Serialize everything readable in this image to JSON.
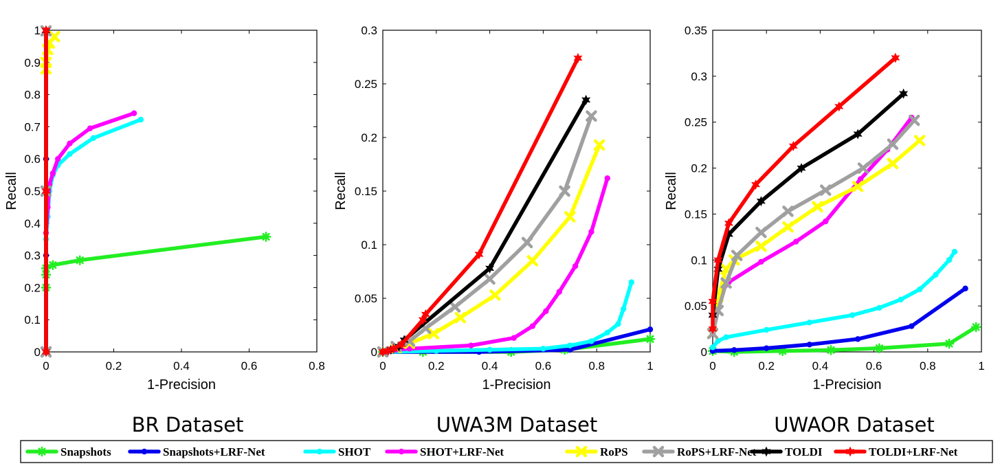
{
  "chart_data": [
    {
      "type": "line",
      "title": "BR Dataset",
      "xlabel": "1-Precision",
      "ylabel": "Recall",
      "xlim": [
        0,
        0.8
      ],
      "ylim": [
        0,
        1
      ],
      "xticks": [
        "0",
        "0.2",
        "0.4",
        "0.6",
        "0.8"
      ],
      "yticks": [
        "0",
        "0.1",
        "0.2",
        "0.3",
        "0.4",
        "0.5",
        "0.6",
        "0.7",
        "0.8",
        "0.9",
        "1"
      ],
      "series": [
        {
          "name": "Snapshots",
          "x": [
            0.0,
            0.0,
            0.0,
            0.02,
            0.1,
            0.65
          ],
          "y": [
            0.2,
            0.24,
            0.26,
            0.27,
            0.285,
            0.358
          ]
        },
        {
          "name": "Snapshots+LRF-Net",
          "x": [
            0.0,
            0.0,
            0.0,
            0.0
          ],
          "y": [
            0.0,
            0.3,
            0.6,
            1.0
          ]
        },
        {
          "name": "SHOT",
          "x": [
            0.0,
            0.005,
            0.01,
            0.02,
            0.035,
            0.07,
            0.14,
            0.28
          ],
          "y": [
            0.35,
            0.42,
            0.5,
            0.55,
            0.58,
            0.615,
            0.665,
            0.722
          ]
        },
        {
          "name": "SHOT+LRF-Net",
          "x": [
            0.0,
            0.005,
            0.01,
            0.02,
            0.035,
            0.07,
            0.13,
            0.26
          ],
          "y": [
            0.37,
            0.45,
            0.52,
            0.555,
            0.6,
            0.648,
            0.695,
            0.742
          ]
        },
        {
          "name": "RoPS",
          "x": [
            0.0,
            0.0,
            0.005,
            0.01,
            0.025
          ],
          "y": [
            0.88,
            0.9,
            0.94,
            0.96,
            0.98
          ]
        },
        {
          "name": "RoPS+LRF-Net",
          "x": [
            0.0,
            0.0,
            0.0
          ],
          "y": [
            0.0,
            0.5,
            0.998
          ]
        },
        {
          "name": "TOLDI",
          "x": [
            0.0,
            0.0,
            0.0
          ],
          "y": [
            0.0,
            0.5,
            0.999
          ]
        },
        {
          "name": "TOLDI+LRF-Net",
          "x": [
            0.0,
            0.0,
            0.0
          ],
          "y": [
            0.0,
            0.5,
            1.0
          ]
        }
      ]
    },
    {
      "type": "line",
      "title": "UWA3M Dataset",
      "xlabel": "1-Precision",
      "ylabel": "Recall",
      "xlim": [
        0,
        1
      ],
      "ylim": [
        0,
        0.3
      ],
      "xticks": [
        "0",
        "0.2",
        "0.4",
        "0.6",
        "0.8",
        "1"
      ],
      "yticks": [
        "0",
        "0.05",
        "0.1",
        "0.15",
        "0.2",
        "0.25",
        "0.3"
      ],
      "series": [
        {
          "name": "Snapshots",
          "x": [
            0.0,
            0.15,
            0.48,
            0.68,
            1.0
          ],
          "y": [
            0.0,
            0.0,
            0.0,
            0.002,
            0.012
          ]
        },
        {
          "name": "Snapshots+LRF-Net",
          "x": [
            0.0,
            0.36,
            0.7,
            1.0
          ],
          "y": [
            0.0,
            0.0,
            0.002,
            0.021
          ]
        },
        {
          "name": "SHOT",
          "x": [
            0.0,
            0.2,
            0.4,
            0.6,
            0.7,
            0.78,
            0.84,
            0.88,
            0.9,
            0.93
          ],
          "y": [
            0.0,
            0.001,
            0.002,
            0.003,
            0.006,
            0.01,
            0.018,
            0.026,
            0.04,
            0.065
          ]
        },
        {
          "name": "SHOT+LRF-Net",
          "x": [
            0.0,
            0.05,
            0.1,
            0.33,
            0.49,
            0.56,
            0.61,
            0.66,
            0.72,
            0.78,
            0.84
          ],
          "y": [
            0.0,
            0.002,
            0.003,
            0.006,
            0.013,
            0.024,
            0.038,
            0.056,
            0.08,
            0.112,
            0.162
          ]
        },
        {
          "name": "RoPS",
          "x": [
            0.0,
            0.05,
            0.1,
            0.19,
            0.29,
            0.42,
            0.56,
            0.7,
            0.81
          ],
          "y": [
            0.0,
            0.004,
            0.008,
            0.017,
            0.032,
            0.053,
            0.085,
            0.126,
            0.193
          ]
        },
        {
          "name": "RoPS+LRF-Net",
          "x": [
            0.0,
            0.05,
            0.1,
            0.16,
            0.27,
            0.4,
            0.54,
            0.68,
            0.78
          ],
          "y": [
            0.0,
            0.005,
            0.01,
            0.022,
            0.042,
            0.068,
            0.102,
            0.15,
            0.22
          ]
        },
        {
          "name": "TOLDI",
          "x": [
            0.0,
            0.03,
            0.06,
            0.08,
            0.4,
            0.76
          ],
          "y": [
            0.0,
            0.002,
            0.005,
            0.011,
            0.078,
            0.235
          ]
        },
        {
          "name": "TOLDI+LRF-Net",
          "x": [
            0.0,
            0.02,
            0.04,
            0.07,
            0.15,
            0.16,
            0.36,
            0.73
          ],
          "y": [
            0.0,
            0.001,
            0.003,
            0.007,
            0.03,
            0.035,
            0.091,
            0.274
          ]
        }
      ]
    },
    {
      "type": "line",
      "title": "UWAOR Dataset",
      "xlabel": "1-Precision",
      "ylabel": "Recall",
      "xlim": [
        0,
        1
      ],
      "ylim": [
        0,
        0.35
      ],
      "xticks": [
        "0",
        "0.2",
        "0.4",
        "0.6",
        "0.8",
        "1"
      ],
      "yticks": [
        "0",
        "0.05",
        "0.1",
        "0.15",
        "0.2",
        "0.25",
        "0.3",
        "0.35"
      ],
      "series": [
        {
          "name": "Snapshots",
          "x": [
            0.0,
            0.08,
            0.26,
            0.44,
            0.62,
            0.88,
            0.98
          ],
          "y": [
            0.001,
            0.0,
            0.001,
            0.002,
            0.004,
            0.009,
            0.027
          ]
        },
        {
          "name": "Snapshots+LRF-Net",
          "x": [
            0.0,
            0.08,
            0.2,
            0.36,
            0.54,
            0.74,
            0.94
          ],
          "y": [
            0.001,
            0.002,
            0.004,
            0.008,
            0.014,
            0.028,
            0.069
          ]
        },
        {
          "name": "SHOT",
          "x": [
            0.0,
            0.02,
            0.05,
            0.2,
            0.36,
            0.52,
            0.62,
            0.7,
            0.77,
            0.83,
            0.88,
            0.9
          ],
          "y": [
            0.005,
            0.012,
            0.016,
            0.024,
            0.032,
            0.04,
            0.048,
            0.057,
            0.068,
            0.084,
            0.1,
            0.109
          ]
        },
        {
          "name": "SHOT+LRF-Net",
          "x": [
            0.0,
            0.02,
            0.06,
            0.18,
            0.31,
            0.42,
            0.55,
            0.65,
            0.74
          ],
          "y": [
            0.02,
            0.06,
            0.076,
            0.098,
            0.12,
            0.142,
            0.188,
            0.22,
            0.255
          ]
        },
        {
          "name": "RoPS",
          "x": [
            0.0,
            0.02,
            0.05,
            0.08,
            0.18,
            0.28,
            0.39,
            0.54,
            0.67,
            0.77
          ],
          "y": [
            0.02,
            0.06,
            0.09,
            0.1,
            0.115,
            0.136,
            0.158,
            0.18,
            0.205,
            0.23
          ]
        },
        {
          "name": "RoPS+LRF-Net",
          "x": [
            0.0,
            0.02,
            0.05,
            0.09,
            0.18,
            0.28,
            0.42,
            0.56,
            0.67,
            0.75
          ],
          "y": [
            0.02,
            0.045,
            0.075,
            0.105,
            0.13,
            0.153,
            0.176,
            0.2,
            0.226,
            0.252
          ]
        },
        {
          "name": "TOLDI",
          "x": [
            0.0,
            0.02,
            0.06,
            0.18,
            0.33,
            0.54,
            0.71
          ],
          "y": [
            0.04,
            0.09,
            0.128,
            0.164,
            0.2,
            0.237,
            0.281
          ]
        },
        {
          "name": "TOLDI+LRF-Net",
          "x": [
            0.0,
            0.0,
            0.02,
            0.06,
            0.16,
            0.3,
            0.47,
            0.68
          ],
          "y": [
            0.025,
            0.055,
            0.1,
            0.14,
            0.182,
            0.224,
            0.267,
            0.32
          ]
        }
      ]
    }
  ],
  "legend": {
    "placement": "bottom",
    "entries": [
      {
        "label": "Snapshots",
        "color": "#22ee22",
        "marker": "star"
      },
      {
        "label": "Snapshots+LRF-Net",
        "color": "#0000ee",
        "marker": "dot"
      },
      {
        "label": "SHOT",
        "color": "#00ffff",
        "marker": "dot"
      },
      {
        "label": "SHOT+LRF-Net",
        "color": "#ff00ff",
        "marker": "dot"
      },
      {
        "label": "RoPS",
        "color": "#ffff00",
        "marker": "cross"
      },
      {
        "label": "RoPS+LRF-Net",
        "color": "#a0a0a0",
        "marker": "cross"
      },
      {
        "label": "TOLDI",
        "color": "#000000",
        "marker": "hexstar"
      },
      {
        "label": "TOLDI+LRF-Net",
        "color": "#ff0000",
        "marker": "hexstar"
      }
    ]
  }
}
